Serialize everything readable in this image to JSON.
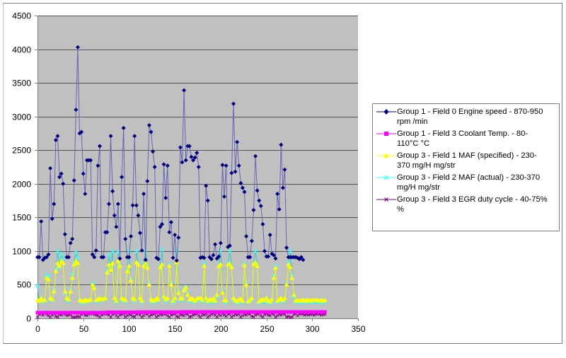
{
  "chart_data": {
    "type": "line",
    "title": "",
    "xlabel": "",
    "ylabel": "",
    "xlim": [
      0,
      350
    ],
    "ylim": [
      0,
      4500
    ],
    "x_ticks": [
      0,
      50,
      100,
      150,
      200,
      250,
      300,
      350
    ],
    "y_ticks": [
      0,
      500,
      1000,
      1500,
      2000,
      2500,
      3000,
      3500,
      4000,
      4500
    ],
    "grid": "horizontal",
    "legend_position": "right",
    "plot_background": "#c0c0c0",
    "x_step": 2,
    "series": [
      {
        "name": "Group 1 - Field 0 Engine speed - 870-950 rpm  /min",
        "color": "#000080",
        "line_color": "#6666b3",
        "marker": "diamond",
        "values": [
          910,
          910,
          1440,
          870,
          900,
          910,
          950,
          2230,
          1480,
          1700,
          2650,
          2710,
          2100,
          2150,
          2000,
          1250,
          910,
          910,
          1120,
          1180,
          2050,
          3100,
          4030,
          2750,
          2770,
          2150,
          1850,
          2350,
          2350,
          2350,
          950,
          910,
          1010,
          2270,
          2560,
          910,
          910,
          1280,
          1280,
          1700,
          2710,
          1890,
          1530,
          1360,
          1700,
          890,
          2100,
          2830,
          1180,
          910,
          910,
          1220,
          1680,
          2710,
          1680,
          1530,
          1270,
          1010,
          1850,
          870,
          2040,
          2870,
          2770,
          2480,
          2250,
          900,
          880,
          1360,
          1400,
          2290,
          1790,
          2270,
          1280,
          1430,
          900,
          1240,
          860,
          1200,
          2540,
          2320,
          3390,
          2350,
          2560,
          2560,
          2400,
          2350,
          2390,
          2460,
          2250,
          900,
          910,
          900,
          1970,
          1750,
          910,
          880,
          940,
          1100,
          890,
          920,
          1120,
          2280,
          1810,
          2270,
          1060,
          1080,
          2160,
          3190,
          2180,
          2620,
          2270,
          2010,
          1940,
          1880,
          1220,
          910,
          910,
          1150,
          1610,
          2410,
          1900,
          1750,
          1670,
          1400,
          1000,
          920,
          920,
          1240,
          960,
          940,
          890,
          1850,
          1620,
          2580,
          1940,
          2210,
          1050,
          910,
          910,
          910,
          910,
          910,
          900,
          880,
          910,
          870
        ]
      },
      {
        "name": "Group 1 - Field 3 Coolant Temp. - 80-110°C °C",
        "color": "#ff00ff",
        "line_color": "#ff00ff",
        "marker": "square",
        "values": [
          85,
          85,
          85,
          85,
          85,
          85,
          85,
          85,
          85,
          85,
          85,
          85,
          85,
          85,
          85,
          85,
          85,
          85,
          85,
          85,
          85,
          85,
          85,
          85,
          85,
          85,
          85,
          85,
          85,
          85,
          85,
          85,
          85,
          85,
          85,
          85,
          85,
          85,
          90,
          90,
          90,
          90,
          90,
          90,
          90,
          90,
          90,
          90,
          90,
          90,
          90,
          90,
          90,
          90,
          90,
          92,
          92,
          92,
          92,
          92,
          92,
          92,
          92,
          92,
          92,
          92,
          92,
          92,
          92,
          92,
          92,
          92,
          92,
          92,
          92,
          92,
          92,
          92,
          92,
          92,
          95,
          95,
          95,
          95,
          95,
          95,
          95,
          95,
          95,
          95,
          95,
          95,
          95,
          95,
          95,
          95,
          95,
          95,
          95,
          95,
          95,
          95,
          95,
          95,
          95,
          95,
          95,
          95,
          95,
          95,
          95,
          95,
          95,
          95,
          95,
          95,
          95,
          95,
          95,
          95,
          95,
          95,
          95,
          95,
          95,
          95,
          95,
          95,
          95,
          95,
          95,
          95,
          95,
          95,
          95,
          95,
          95,
          95,
          95,
          95,
          95,
          95,
          95,
          95,
          95,
          95,
          95,
          95,
          95,
          95,
          95,
          95,
          95,
          95,
          95,
          95,
          95,
          95
        ]
      },
      {
        "name": "Group 3 - Field 1 MAF (specified) - 230-370 mg/H  mg/str",
        "color": "#ffff00",
        "line_color": "#ffff00",
        "marker": "triangle",
        "values": [
          270,
          260,
          300,
          270,
          270,
          600,
          580,
          300,
          280,
          400,
          700,
          820,
          780,
          850,
          820,
          400,
          300,
          280,
          400,
          600,
          800,
          850,
          820,
          270,
          260,
          250,
          280,
          260,
          270,
          280,
          500,
          450,
          270,
          280,
          300,
          280,
          290,
          300,
          680,
          800,
          720,
          820,
          300,
          260,
          850,
          780,
          300,
          280,
          270,
          700,
          780,
          560,
          300,
          280,
          830,
          800,
          300,
          260,
          780,
          820,
          750,
          500,
          280,
          260,
          270,
          300,
          280,
          760,
          800,
          320,
          280,
          300,
          780,
          500,
          260,
          300,
          830,
          380,
          290,
          300,
          420,
          460,
          350,
          280,
          300,
          280,
          260,
          290,
          300,
          300,
          270,
          780,
          300,
          260,
          280,
          270,
          300,
          260,
          350,
          780,
          800,
          380,
          270,
          260,
          800,
          810,
          760,
          300,
          270,
          250,
          280,
          290,
          260,
          790,
          500,
          250,
          270,
          300,
          800,
          830,
          780,
          250,
          270,
          280,
          270,
          300,
          260,
          250,
          280,
          600,
          750,
          260,
          280,
          300,
          270,
          300,
          500,
          800,
          760,
          600,
          350,
          260,
          270,
          260,
          270,
          270,
          260,
          270,
          270,
          260,
          270,
          270,
          270,
          270,
          260,
          270,
          260,
          270
        ]
      },
      {
        "name": "Group 3 - Field 2 MAF (actual) - 230-370 mg/H  mg/str",
        "color": "#33ffff",
        "line_color": "#33cccc",
        "marker": "star",
        "values": [
          480,
          260,
          280,
          250,
          260,
          640,
          620,
          280,
          270,
          420,
          720,
          1000,
          760,
          950,
          880,
          380,
          280,
          260,
          420,
          650,
          830,
          980,
          900,
          260,
          240,
          230,
          260,
          250,
          260,
          270,
          520,
          470,
          250,
          270,
          290,
          270,
          280,
          290,
          700,
          940,
          740,
          1000,
          290,
          240,
          980,
          800,
          280,
          260,
          250,
          720,
          1000,
          580,
          290,
          260,
          1000,
          830,
          290,
          240,
          800,
          1000,
          770,
          520,
          260,
          240,
          250,
          290,
          260,
          780,
          1020,
          300,
          260,
          280,
          800,
          520,
          240,
          280,
          1000,
          400,
          270,
          280,
          440,
          470,
          370,
          260,
          280,
          260,
          240,
          270,
          290,
          280,
          250,
          820,
          280,
          240,
          260,
          250,
          280,
          240,
          330,
          800,
          1000,
          400,
          250,
          240,
          820,
          1000,
          780,
          280,
          250,
          230,
          260,
          270,
          240,
          810,
          520,
          240,
          250,
          280,
          820,
          1000,
          800,
          230,
          250,
          260,
          250,
          280,
          240,
          230,
          260,
          620,
          780,
          240,
          260,
          280,
          250,
          280,
          520,
          830,
          1000,
          620,
          330,
          240,
          250,
          240,
          250,
          250,
          240,
          250,
          250,
          240,
          250,
          250,
          250,
          250,
          240,
          250,
          240,
          250
        ]
      },
      {
        "name": "Group 3 - Field 3 EGR duty cycle - 40-75% %",
        "color": "#800080",
        "line_color": "#a040a0",
        "marker": "x",
        "values": [
          20,
          60,
          70,
          50,
          75,
          60,
          40,
          20,
          50,
          70,
          30,
          20,
          60,
          50,
          70,
          60,
          40,
          50,
          60,
          20,
          15,
          20,
          30,
          20,
          60,
          70,
          50,
          40,
          60,
          70,
          70,
          60,
          50,
          40,
          20,
          50,
          60,
          70,
          60,
          50,
          20,
          60,
          70,
          40,
          20,
          50,
          60,
          70,
          20,
          40,
          60,
          50,
          30,
          20,
          60,
          70,
          50,
          20,
          40,
          70,
          60,
          30,
          50,
          60,
          70,
          20,
          40,
          60,
          50,
          70,
          60,
          40,
          20,
          50,
          60,
          70,
          30,
          20,
          60,
          50,
          40,
          70,
          60,
          20,
          30,
          50,
          60,
          70,
          40,
          20,
          60,
          50,
          70,
          20,
          40,
          60,
          70,
          50,
          20,
          60,
          40,
          70,
          50,
          30,
          60,
          70,
          20,
          40,
          60,
          50,
          70,
          20,
          40,
          60,
          50,
          70,
          60,
          30,
          20,
          50,
          60,
          70,
          40,
          20,
          60,
          70,
          50,
          40,
          70,
          60,
          20,
          40,
          60,
          50,
          70,
          60,
          20,
          30,
          15,
          20,
          60,
          70,
          40,
          60,
          70,
          60,
          50,
          60,
          50,
          60,
          60,
          50,
          60,
          70,
          60,
          50,
          60,
          60
        ]
      }
    ]
  },
  "legend": {
    "items": [
      {
        "line1": "Group 1 - Field 0 Engine speed - 870-950",
        "line2": "rpm  /min"
      },
      {
        "line1": "Group 1 - Field 3 Coolant Temp. - 80-",
        "line2": "110°C °C"
      },
      {
        "line1": "Group 3 - Field 1 MAF (specified) - 230-",
        "line2": "370 mg/H  mg/str"
      },
      {
        "line1": "Group 3 - Field 2 MAF (actual) - 230-370",
        "line2": "mg/H  mg/str"
      },
      {
        "line1": "Group 3 - Field 3 EGR duty cycle - 40-75%",
        "line2": "%"
      }
    ]
  }
}
